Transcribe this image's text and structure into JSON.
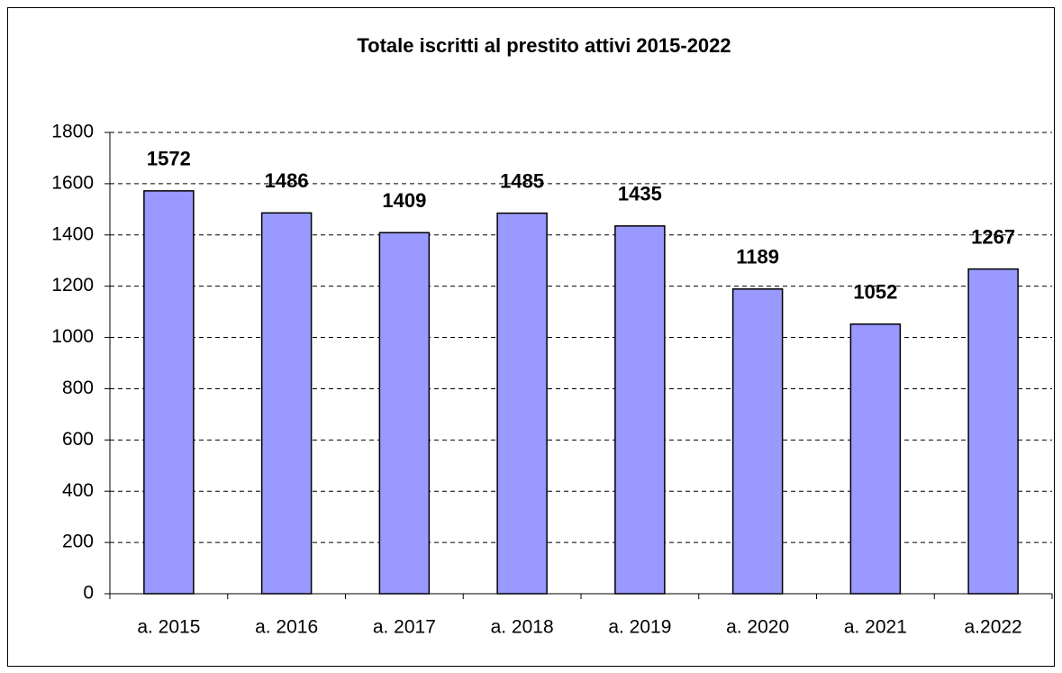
{
  "chart_data": {
    "type": "bar",
    "title": "Totale iscritti al prestito attivi 2015-2022",
    "categories": [
      "a. 2015",
      "a. 2016",
      "a. 2017",
      "a. 2018",
      "a. 2019",
      "a. 2020",
      "a. 2021",
      "a.2022"
    ],
    "values": [
      1572,
      1486,
      1409,
      1485,
      1435,
      1189,
      1052,
      1267
    ],
    "color": "#9999ff",
    "ylim": [
      0,
      1800
    ],
    "yticks": [
      0,
      200,
      400,
      600,
      800,
      1000,
      1200,
      1400,
      1600,
      1800
    ],
    "grid": true
  }
}
